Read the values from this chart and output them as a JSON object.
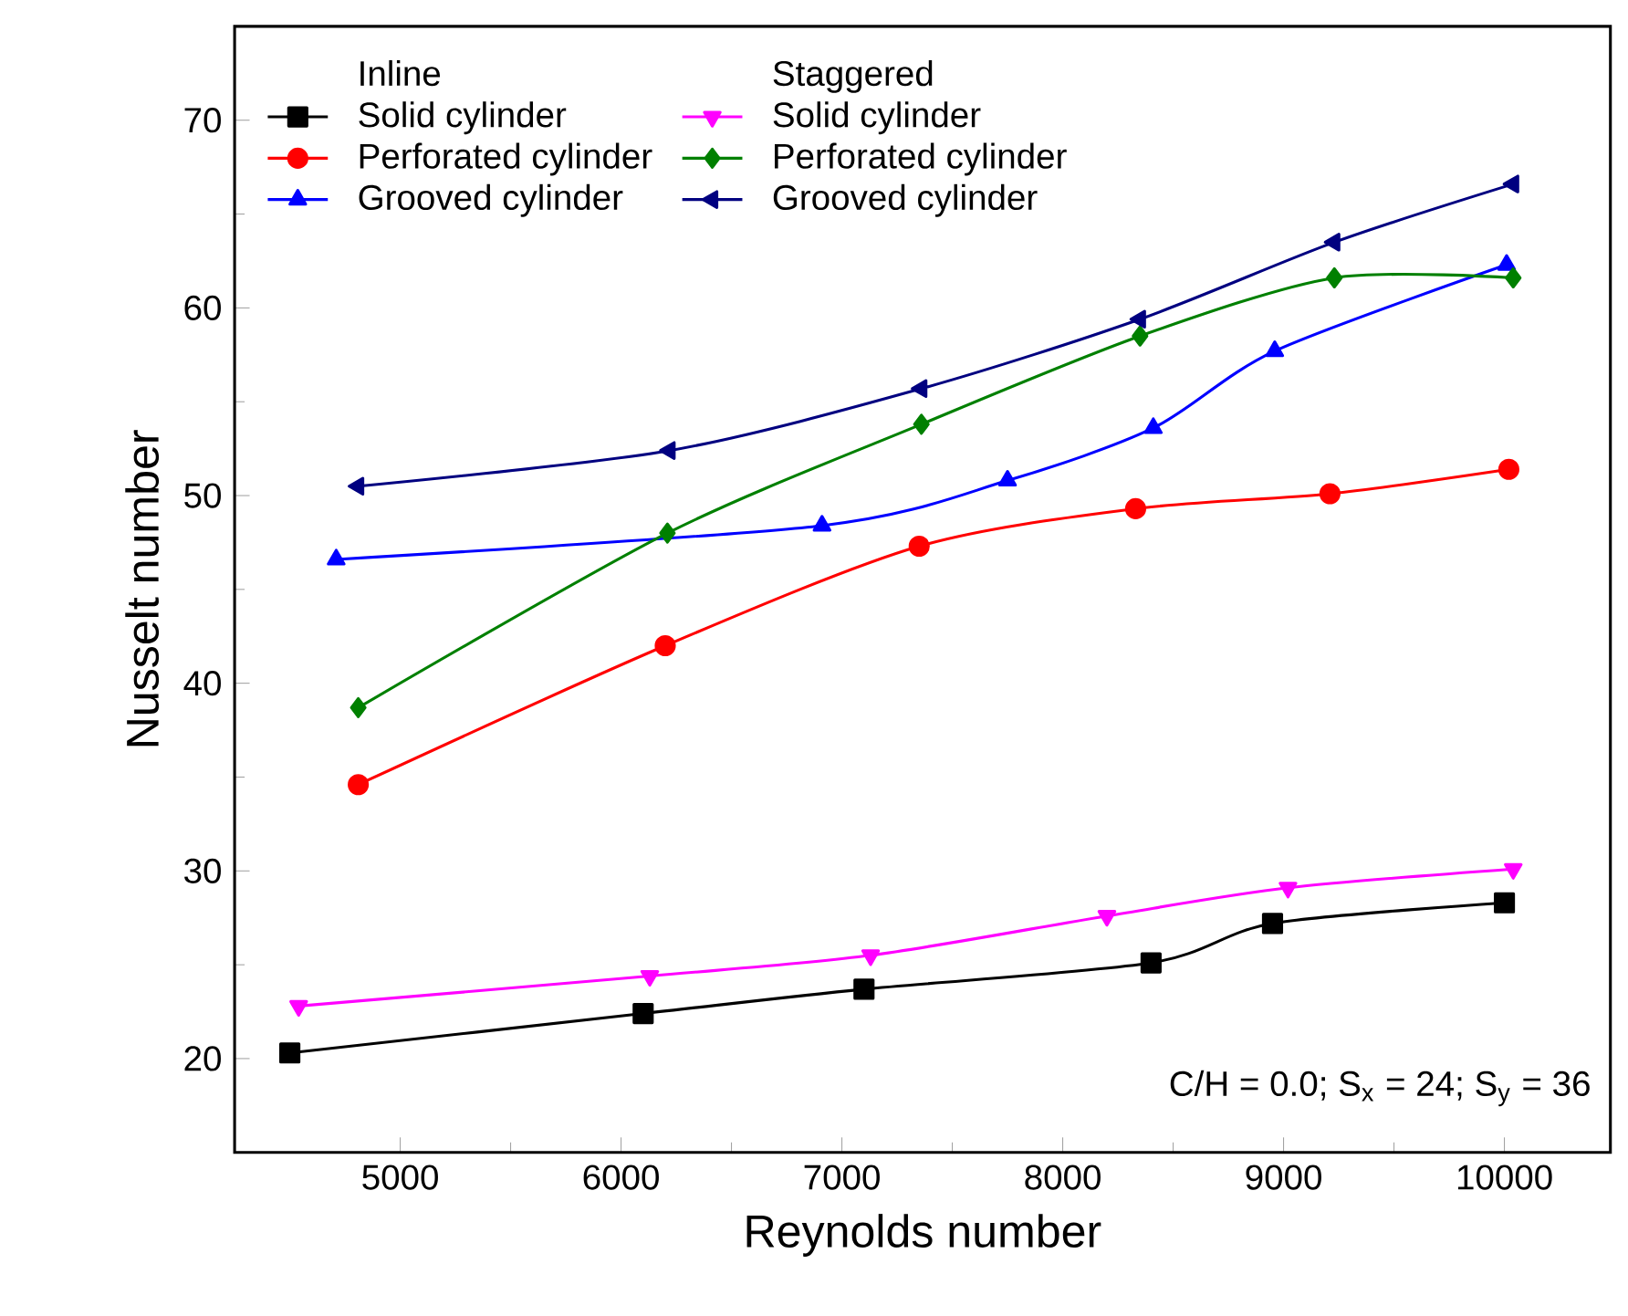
{
  "chart_data": {
    "type": "line",
    "xlabel": "Reynolds number",
    "ylabel": "Nusselt number",
    "xlim": [
      4250,
      10480
    ],
    "ylim": [
      15,
      75
    ],
    "xticks": [
      5000,
      6000,
      7000,
      8000,
      9000,
      10000
    ],
    "yticks": [
      20,
      30,
      40,
      50,
      60,
      70
    ],
    "legend": "top left",
    "grid": false,
    "line_style": "solid",
    "annotations": [
      "Inline",
      "Staggered",
      "C/H = 0.0; S$_{x}$ = 24; S$_{y}$ = 36"
    ],
    "series": [
      {
        "name": "Solid cylinder",
        "color": "#000000",
        "marker": "square",
        "x": [
          4500,
          6100,
          7100,
          8400,
          8950,
          10000
        ],
        "values": [
          20.3,
          22.4,
          23.7,
          25.1,
          27.2,
          28.3
        ]
      },
      {
        "name": "Perforated cylinder",
        "color": "#ff0000",
        "marker": "circle",
        "x": [
          4810,
          6200,
          7350,
          8330,
          9210,
          10020
        ],
        "values": [
          34.6,
          42.0,
          47.3,
          49.3,
          50.1,
          51.4
        ]
      },
      {
        "name": "Grooved cylinder",
        "color": "#0000ff",
        "marker": "triangle",
        "x": [
          4710,
          6910,
          7750,
          8410,
          8960,
          10010
        ],
        "values": [
          46.6,
          48.4,
          50.8,
          53.6,
          57.7,
          62.3
        ]
      },
      {
        "name": "Solid cylinder",
        "color": "#ff00ff",
        "marker": "triangle-down",
        "x": [
          4540,
          6130,
          7130,
          8200,
          9020,
          10040
        ],
        "values": [
          22.8,
          24.4,
          25.5,
          27.6,
          29.1,
          30.1
        ]
      },
      {
        "name": "Perforated cylinder",
        "color": "#008000",
        "marker": "diamond",
        "x": [
          4810,
          6210,
          7360,
          8350,
          9230,
          10040
        ],
        "values": [
          38.7,
          48.0,
          53.8,
          58.5,
          61.6,
          61.6
        ]
      },
      {
        "name": "Grooved cylinder",
        "color": "#000080",
        "marker": "triangle-left",
        "x": [
          4810,
          6220,
          7360,
          8350,
          9230,
          10040
        ],
        "values": [
          50.5,
          52.4,
          55.7,
          59.4,
          63.5,
          66.6
        ]
      }
    ]
  }
}
